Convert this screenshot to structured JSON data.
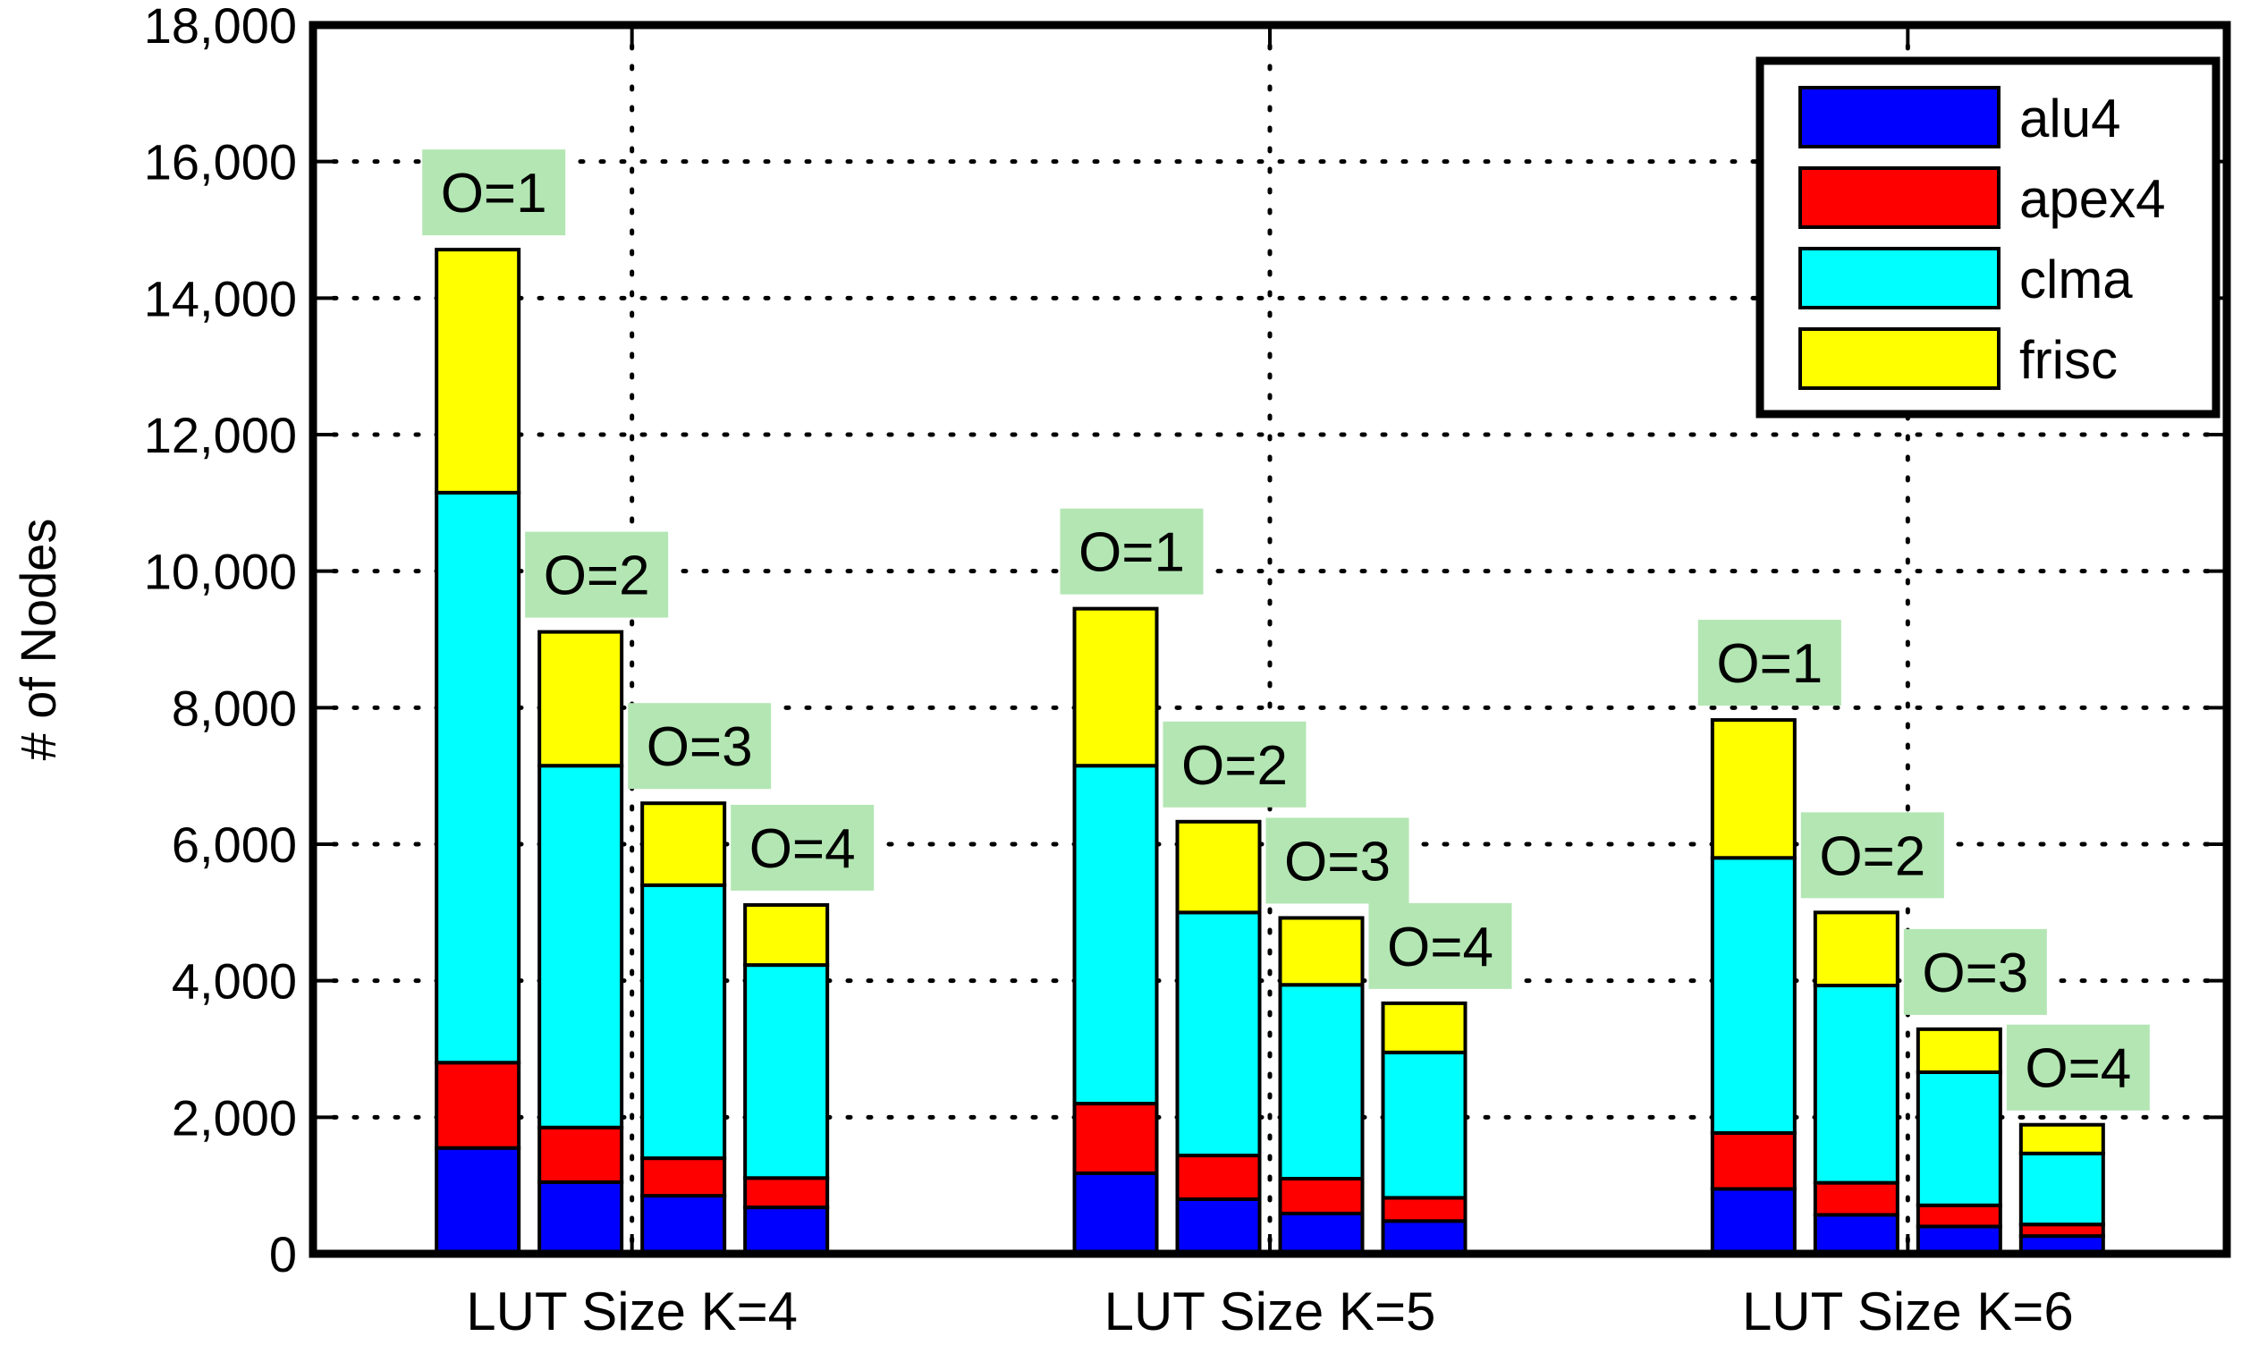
{
  "chart_data": {
    "type": "bar",
    "stacked": true,
    "ylabel": "# of Nodes",
    "ylim": [
      0,
      18000
    ],
    "yticks": [
      "0",
      "2,000",
      "4,000",
      "6,000",
      "8,000",
      "10,000",
      "12,000",
      "14,000",
      "16,000",
      "18,000"
    ],
    "categories": [
      "LUT Size K=4",
      "LUT Size K=5",
      "LUT Size K=6"
    ],
    "bar_labels": [
      "O=1",
      "O=2",
      "O=3",
      "O=4"
    ],
    "grid": true,
    "legend_position": "top-right",
    "series": [
      {
        "name": "alu4",
        "color": "#0000ff",
        "values": [
          [
            1550,
            1050,
            850,
            680
          ],
          [
            1180,
            800,
            590,
            480
          ],
          [
            950,
            570,
            400,
            260
          ]
        ]
      },
      {
        "name": "apex4",
        "color": "#ff0000",
        "values": [
          [
            1250,
            800,
            550,
            430
          ],
          [
            1020,
            640,
            510,
            340
          ],
          [
            820,
            470,
            310,
            170
          ]
        ]
      },
      {
        "name": "clma",
        "color": "#00ffff",
        "values": [
          [
            8350,
            5300,
            4000,
            3120
          ],
          [
            4950,
            3560,
            2840,
            2130
          ],
          [
            4030,
            2890,
            1950,
            1040
          ]
        ]
      },
      {
        "name": "frisc",
        "color": "#ffff00",
        "values": [
          [
            3560,
            1960,
            1200,
            880
          ],
          [
            2300,
            1330,
            980,
            720
          ],
          [
            2020,
            1070,
            630,
            420
          ]
        ]
      }
    ]
  }
}
